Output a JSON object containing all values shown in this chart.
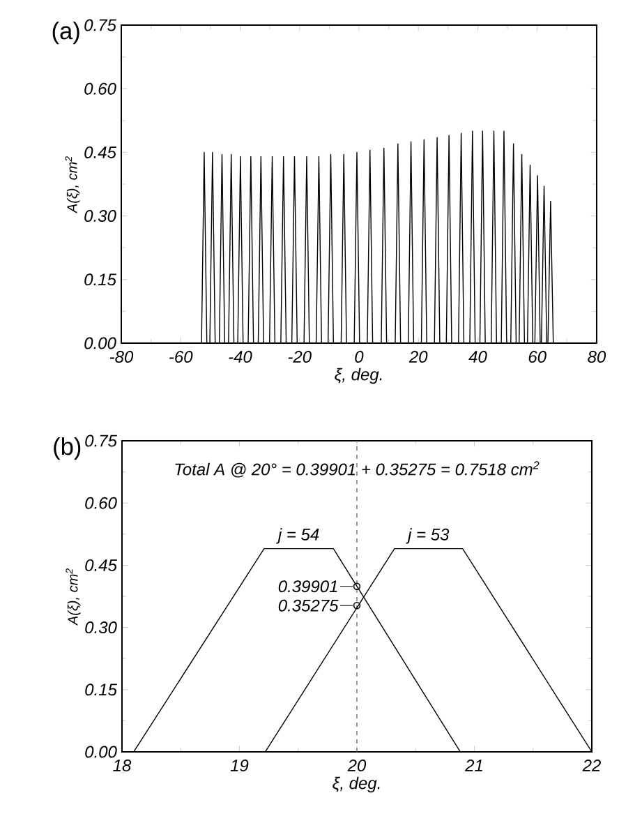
{
  "chart_data": [
    {
      "type": "line",
      "title": "(a)",
      "xlabel": "ξ, deg.",
      "ylabel": "A(ξ), cm$^{2}$",
      "xlim": [
        -80,
        80
      ],
      "xticks": [
        -80,
        -60,
        -40,
        -20,
        0,
        20,
        40,
        60,
        80
      ],
      "ylim": [
        0,
        0.75
      ],
      "yticks": [
        {
          "value": 0,
          "label": "0.00"
        },
        {
          "value": 0.15,
          "label": "0.15"
        },
        {
          "value": 0.3,
          "label": "0.30"
        },
        {
          "value": 0.45,
          "label": "0.45"
        },
        {
          "value": 0.6,
          "label": "0.60"
        },
        {
          "value": 0.75,
          "label": "0.75"
        }
      ],
      "grid": false,
      "marker": "none",
      "line_style": "solid",
      "series": [
        {
          "color": "#000000",
          "x": [
            -53.0,
            -52.1,
            -51.2,
            -50.2,
            -49.3,
            -48.4,
            -47.0,
            -46.1,
            -45.2,
            -43.9,
            -43.0,
            -42.1,
            -40.8,
            -39.9,
            -39.0,
            -37.3,
            -36.4,
            -35.5,
            -33.9,
            -33.0,
            -32.1,
            -30.1,
            -29.2,
            -28.3,
            -26.3,
            -25.4,
            -24.5,
            -22.6,
            -21.7,
            -20.8,
            -18.5,
            -17.6,
            -16.7,
            -14.4,
            -13.5,
            -12.6,
            -10.4,
            -9.5,
            -8.6,
            -6.0,
            -5.1,
            -4.2,
            -1.6,
            -0.7,
            0.2,
            2.8,
            3.7,
            4.6,
            7.5,
            8.4,
            9.3,
            12.2,
            13.1,
            14.0,
            16.6,
            17.5,
            18.4,
            21.0,
            21.9,
            22.8,
            25.4,
            26.3,
            27.2,
            29.4,
            30.3,
            31.2,
            33.5,
            34.4,
            35.3,
            37.3,
            38.2,
            39.1,
            40.7,
            41.6,
            42.5,
            44.5,
            45.4,
            46.3,
            47.9,
            48.8,
            49.7,
            51.1,
            52.0,
            52.9,
            53.9,
            54.8,
            55.7,
            56.7,
            57.6,
            58.5,
            59.2,
            60.1,
            61.0,
            61.4,
            62.3,
            63.2,
            63.6,
            64.5,
            65.4
          ],
          "values": [
            0,
            0.45,
            0,
            0,
            0.45,
            0,
            0,
            0.445,
            0,
            0,
            0.445,
            0,
            0,
            0.44,
            0,
            0,
            0.44,
            0,
            0,
            0.44,
            0,
            0,
            0.44,
            0,
            0,
            0.44,
            0,
            0,
            0.44,
            0,
            0,
            0.44,
            0,
            0,
            0.44,
            0,
            0,
            0.445,
            0,
            0,
            0.445,
            0,
            0,
            0.45,
            0,
            0,
            0.455,
            0,
            0,
            0.46,
            0,
            0,
            0.47,
            0,
            0,
            0.475,
            0,
            0,
            0.48,
            0,
            0,
            0.485,
            0,
            0,
            0.49,
            0,
            0,
            0.495,
            0,
            0,
            0.5,
            0,
            0,
            0.5,
            0,
            0,
            0.5,
            0,
            0,
            0.5,
            0,
            0,
            0.47,
            0,
            0,
            0.445,
            0,
            0,
            0.42,
            0,
            0,
            0.395,
            0,
            0,
            0.37,
            0,
            0,
            0.335,
            0
          ]
        }
      ]
    },
    {
      "type": "line",
      "title": "(b)",
      "xlabel": "ξ, deg.",
      "ylabel": "A(ξ), cm$^{2}$",
      "xlim": [
        18,
        22
      ],
      "xticks": [
        18,
        19,
        20,
        21,
        22
      ],
      "ylim": [
        0,
        0.75
      ],
      "yticks": [
        {
          "value": 0,
          "label": "0.00"
        },
        {
          "value": 0.15,
          "label": "0.15"
        },
        {
          "value": 0.3,
          "label": "0.30"
        },
        {
          "value": 0.45,
          "label": "0.45"
        },
        {
          "value": 0.6,
          "label": "0.60"
        },
        {
          "value": 0.75,
          "label": "0.75"
        }
      ],
      "grid": false,
      "line_style": "solid",
      "ref_lines": [
        {
          "axis": "x",
          "value": 20,
          "color": "#808080",
          "line_style": "dashed"
        }
      ],
      "annotations": [
        "Total A @ 20° = 0.39901 + 0.35275 = 0.7518 cm$^{2}$",
        {
          "text": "0.39901",
          "x": 20,
          "y": 0.39901
        },
        {
          "text": "0.35275",
          "x": 20,
          "y": 0.35275
        }
      ],
      "series": [
        {
          "name": "j = 54",
          "color": "#000000",
          "marker": "none",
          "x": [
            18.1,
            19.21,
            19.8,
            20.88
          ],
          "values": [
            0,
            0.49,
            0.49,
            0
          ]
        },
        {
          "name": "j = 53",
          "color": "#000000",
          "marker": "none",
          "x": [
            19.22,
            20.32,
            20.9,
            22.0
          ],
          "values": [
            0,
            0.49,
            0.49,
            0
          ]
        },
        {
          "type": "scatter",
          "color": "#000000",
          "marker": "circle",
          "x": [
            20,
            20
          ],
          "values": [
            0.39901,
            0.35275
          ]
        }
      ]
    }
  ]
}
